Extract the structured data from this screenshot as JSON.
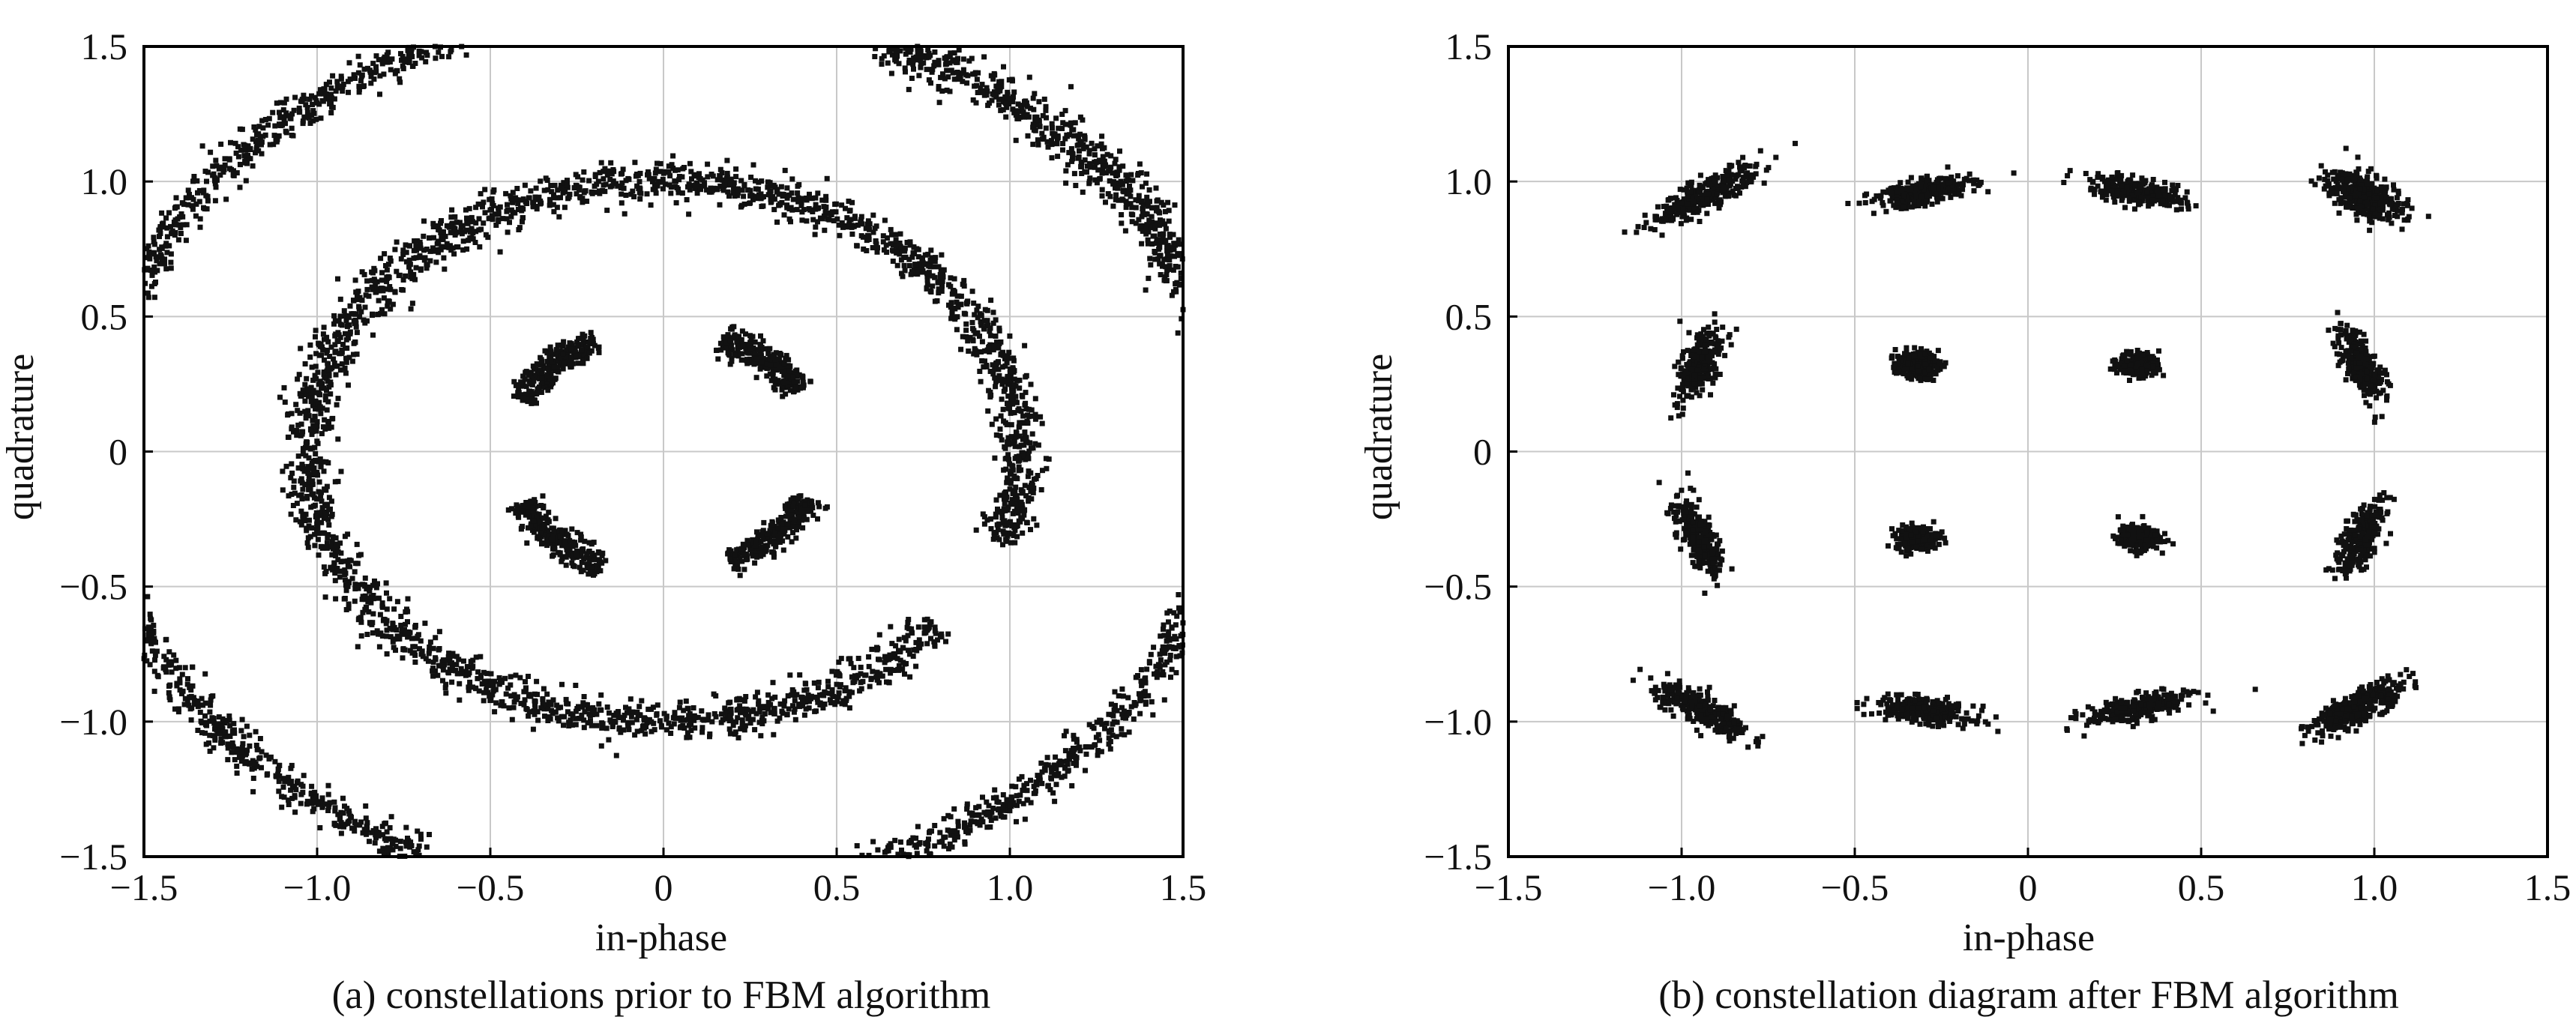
{
  "colors": {
    "marker": "#111111",
    "grid": "#c8c8c8",
    "frame": "#000000"
  },
  "chart_data": [
    {
      "type": "scatter",
      "panel": "a",
      "caption": "(a) constellations prior to FBM algorithm",
      "xlabel": "in-phase",
      "ylabel": "quadrature",
      "xlim": [
        -1.5,
        1.5
      ],
      "ylim": [
        -1.5,
        1.5
      ],
      "xticks": [
        -1.5,
        -1.0,
        -0.5,
        0,
        0.5,
        1.0,
        1.5
      ],
      "yticks": [
        -1.5,
        -1.0,
        -0.5,
        0,
        0.5,
        1.0,
        1.5
      ],
      "xtick_labels": [
        "−1.5",
        "−1.0",
        "−0.5",
        "0",
        "0.5",
        "1.0",
        "1.5"
      ],
      "ytick_labels": [
        "−1.5",
        "−1.0",
        "−0.5",
        "0",
        "0.5",
        "1.0",
        "1.5"
      ],
      "grid": true,
      "clusters": [
        {
          "shape": "ring",
          "center": [
            0.0,
            0.0
          ],
          "rx": 1.03,
          "ry": 1.0,
          "width": 0.035,
          "gaps_deg": [
            [
              320,
              340
            ]
          ],
          "count": 2600
        },
        {
          "shape": "arc",
          "center": [
            0.0,
            0.0
          ],
          "r": 1.64,
          "from_deg": 110,
          "to_deg": 160,
          "width": 0.03,
          "count": 500
        },
        {
          "shape": "arc",
          "center": [
            0.0,
            0.0
          ],
          "r": 1.64,
          "from_deg": 15,
          "to_deg": 68,
          "width": 0.04,
          "count": 700
        },
        {
          "shape": "arc",
          "center": [
            0.0,
            0.0
          ],
          "r": 1.64,
          "from_deg": 195,
          "to_deg": 245,
          "width": 0.03,
          "count": 500
        },
        {
          "shape": "arc",
          "center": [
            0.0,
            0.0
          ],
          "r": 1.64,
          "from_deg": 288,
          "to_deg": 345,
          "width": 0.03,
          "count": 550
        },
        {
          "shape": "arc",
          "center": [
            0.0,
            0.0
          ],
          "r": 0.45,
          "from_deg": 115,
          "to_deg": 155,
          "width": 0.025,
          "count": 260
        },
        {
          "shape": "arc",
          "center": [
            0.0,
            0.0
          ],
          "r": 0.45,
          "from_deg": 30,
          "to_deg": 68,
          "width": 0.025,
          "count": 260
        },
        {
          "shape": "arc",
          "center": [
            0.0,
            0.0
          ],
          "r": 0.45,
          "from_deg": 205,
          "to_deg": 248,
          "width": 0.025,
          "count": 260
        },
        {
          "shape": "arc",
          "center": [
            0.0,
            0.0
          ],
          "r": 0.45,
          "from_deg": 295,
          "to_deg": 338,
          "width": 0.025,
          "count": 260
        }
      ]
    },
    {
      "type": "scatter",
      "panel": "b",
      "caption": "(b) constellation diagram after FBM algorithm",
      "xlabel": "in-phase",
      "ylabel": "quadrature",
      "xlim": [
        -1.5,
        1.5
      ],
      "ylim": [
        -1.5,
        1.5
      ],
      "xticks": [
        -1.5,
        -1.0,
        -0.5,
        0,
        0.5,
        1.0,
        1.5
      ],
      "yticks": [
        -1.5,
        -1.0,
        -0.5,
        0,
        0.5,
        1.0,
        1.5
      ],
      "xtick_labels": [
        "−1.5",
        "−1.0",
        "−0.5",
        "0",
        "0.5",
        "1.0",
        "1.5"
      ],
      "ytick_labels": [
        "−1.5",
        "−1.0",
        "−0.5",
        "0",
        "0.5",
        "1.0",
        "1.5"
      ],
      "grid": true,
      "clusters": [
        {
          "shape": "blob",
          "center": [
            -0.93,
            0.95
          ],
          "angle_deg": 35,
          "sx": 0.09,
          "sy": 0.025,
          "count": 300
        },
        {
          "shape": "blob",
          "center": [
            -0.3,
            0.96
          ],
          "angle_deg": 15,
          "sx": 0.075,
          "sy": 0.022,
          "count": 300
        },
        {
          "shape": "blob",
          "center": [
            0.32,
            0.96
          ],
          "angle_deg": -15,
          "sx": 0.07,
          "sy": 0.022,
          "count": 300
        },
        {
          "shape": "blob",
          "center": [
            0.97,
            0.95
          ],
          "angle_deg": -35,
          "sx": 0.06,
          "sy": 0.035,
          "count": 360
        },
        {
          "shape": "blob",
          "center": [
            -0.95,
            0.32
          ],
          "angle_deg": 70,
          "sx": 0.07,
          "sy": 0.025,
          "count": 280
        },
        {
          "shape": "blob",
          "center": [
            -0.32,
            0.32
          ],
          "angle_deg": 0,
          "sx": 0.03,
          "sy": 0.025,
          "count": 240
        },
        {
          "shape": "blob",
          "center": [
            0.32,
            0.32
          ],
          "angle_deg": 0,
          "sx": 0.03,
          "sy": 0.022,
          "count": 240
        },
        {
          "shape": "blob",
          "center": [
            0.96,
            0.32
          ],
          "angle_deg": -70,
          "sx": 0.07,
          "sy": 0.025,
          "count": 280
        },
        {
          "shape": "blob",
          "center": [
            -0.95,
            -0.32
          ],
          "angle_deg": -70,
          "sx": 0.07,
          "sy": 0.025,
          "count": 280
        },
        {
          "shape": "blob",
          "center": [
            -0.32,
            -0.32
          ],
          "angle_deg": 0,
          "sx": 0.03,
          "sy": 0.022,
          "count": 240
        },
        {
          "shape": "blob",
          "center": [
            0.32,
            -0.32
          ],
          "angle_deg": 0,
          "sx": 0.03,
          "sy": 0.022,
          "count": 240
        },
        {
          "shape": "blob",
          "center": [
            0.96,
            -0.32
          ],
          "angle_deg": 70,
          "sx": 0.07,
          "sy": 0.025,
          "count": 280
        },
        {
          "shape": "blob",
          "center": [
            -0.94,
            -0.96
          ],
          "angle_deg": -35,
          "sx": 0.08,
          "sy": 0.025,
          "count": 300
        },
        {
          "shape": "blob",
          "center": [
            -0.3,
            -0.96
          ],
          "angle_deg": -10,
          "sx": 0.07,
          "sy": 0.022,
          "count": 300
        },
        {
          "shape": "blob",
          "center": [
            0.32,
            -0.95
          ],
          "angle_deg": 15,
          "sx": 0.08,
          "sy": 0.022,
          "count": 300
        },
        {
          "shape": "blob",
          "center": [
            0.95,
            -0.95
          ],
          "angle_deg": 35,
          "sx": 0.08,
          "sy": 0.025,
          "count": 320
        }
      ]
    }
  ]
}
